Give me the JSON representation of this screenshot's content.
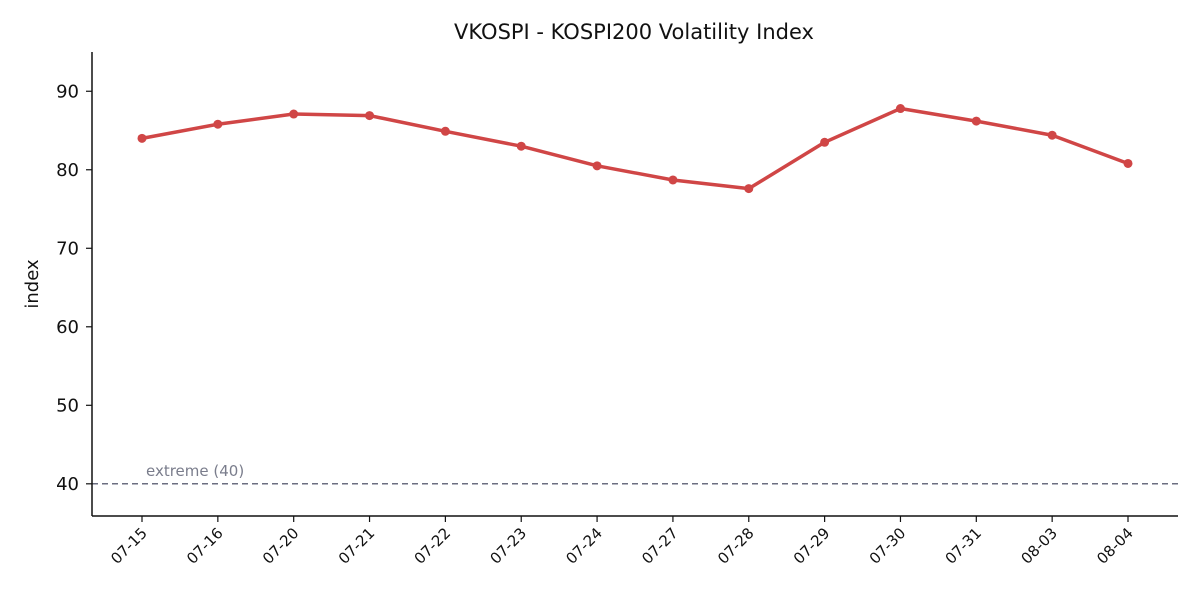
{
  "chart_data": {
    "type": "line",
    "title": "VKOSPI - KOSPI200 Volatility Index",
    "xlabel": "",
    "ylabel": "index",
    "categories": [
      "07-15",
      "07-16",
      "07-20",
      "07-21",
      "07-22",
      "07-23",
      "07-24",
      "07-27",
      "07-28",
      "07-29",
      "07-30",
      "07-31",
      "08-03",
      "08-04"
    ],
    "series": [
      {
        "values": [
          84.0,
          85.8,
          87.1,
          86.9,
          84.9,
          83.0,
          80.5,
          78.7,
          77.6,
          83.5,
          87.8,
          86.2,
          84.4,
          80.8
        ],
        "color": "#d04646"
      }
    ],
    "ylim": [
      35.9,
      95.0
    ],
    "yticks": [
      40,
      50,
      60,
      70,
      80,
      90
    ],
    "grid": false,
    "reference_line": {
      "value": 40,
      "label": "extreme (40)",
      "style": "dashed",
      "color": "#6b6e80"
    }
  }
}
